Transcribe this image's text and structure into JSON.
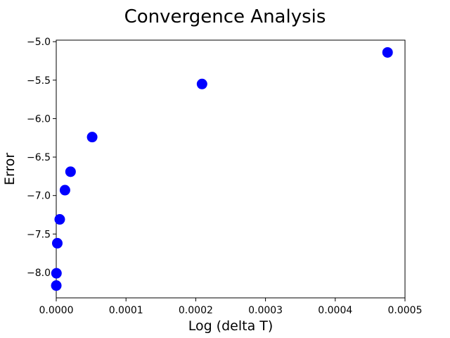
{
  "chart_data": {
    "type": "scatter",
    "title": "Convergence Analysis",
    "xlabel": "Log (delta T)",
    "ylabel": "Error",
    "xlim": [
      0,
      0.0005
    ],
    "ylim": [
      -8.33,
      -4.98
    ],
    "x_ticks": [
      0,
      0.0001,
      0.0002,
      0.0003,
      0.0004,
      0.0005
    ],
    "x_tick_labels": [
      "0.0000",
      "0.0001",
      "0.0002",
      "0.0003",
      "0.0004",
      "0.0005"
    ],
    "y_ticks": [
      -8.0,
      -7.5,
      -7.0,
      -6.5,
      -6.0,
      -5.5,
      -5.0
    ],
    "y_tick_labels": [
      "−8.0",
      "−7.5",
      "−7.0",
      "−6.5",
      "−6.0",
      "−5.5",
      "−5.0"
    ],
    "grid": false,
    "legend": "none",
    "marker_color": "#0000ff",
    "series": [
      {
        "x": [
          0.000475,
          0.000209,
          5.15e-05,
          2.05e-05,
          1.25e-05,
          5e-06,
          1.5e-06,
          3e-07,
          5e-08
        ],
        "y": [
          -5.14,
          -5.55,
          -6.24,
          -6.69,
          -6.93,
          -7.31,
          -7.62,
          -8.01,
          -8.17
        ]
      }
    ]
  }
}
